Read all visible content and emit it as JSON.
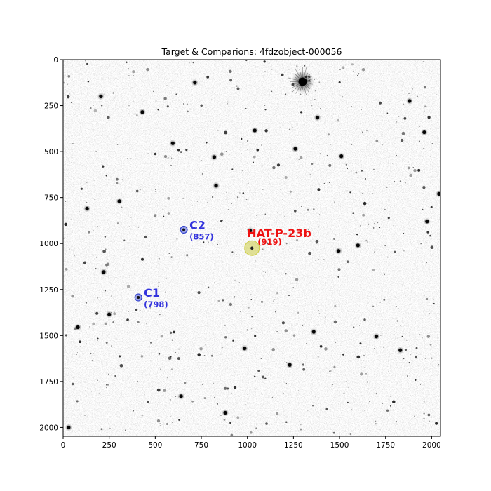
{
  "chart_data": {
    "type": "scatter",
    "title": "Target & Comparions: 4fdzobject-000056",
    "xlabel": "",
    "ylabel": "",
    "xlim": [
      0,
      2048
    ],
    "ylim": [
      2048,
      0
    ],
    "x_ticks": [
      0,
      250,
      500,
      750,
      1000,
      1250,
      1500,
      1750,
      2000
    ],
    "y_ticks": [
      0,
      250,
      500,
      750,
      1000,
      1250,
      1500,
      1750,
      2000
    ],
    "grid": false,
    "background": "greyscale star field image (inverted: stars dark on light background)",
    "image_features": {
      "bright_star": {
        "x": 1300,
        "y": 120
      },
      "stars": [
        [
          205,
          200
        ],
        [
          715,
          125
        ],
        [
          430,
          285
        ],
        [
          595,
          455
        ],
        [
          820,
          530
        ],
        [
          1260,
          485
        ],
        [
          1510,
          525
        ],
        [
          1960,
          395
        ],
        [
          1880,
          225
        ],
        [
          305,
          770
        ],
        [
          130,
          810
        ],
        [
          1975,
          880
        ],
        [
          2040,
          730
        ],
        [
          1380,
          315
        ],
        [
          1040,
          385
        ],
        [
          220,
          1155
        ],
        [
          250,
          1385
        ],
        [
          80,
          1455
        ],
        [
          1700,
          1505
        ],
        [
          985,
          1570
        ],
        [
          1230,
          1660
        ],
        [
          880,
          1920
        ],
        [
          30,
          2000
        ],
        [
          1495,
          1040
        ],
        [
          1015,
          930
        ],
        [
          830,
          685
        ],
        [
          1600,
          1010
        ],
        [
          1830,
          1580
        ],
        [
          640,
          1830
        ],
        [
          1360,
          1480
        ]
      ]
    },
    "annotations": [
      {
        "name": "C2",
        "count": "(857)",
        "x": 655,
        "y": 925,
        "color": "#3333dd",
        "marker_color": "#2233cc",
        "role": "comparison"
      },
      {
        "name": "C1",
        "count": "(798)",
        "x": 408,
        "y": 1293,
        "color": "#3333dd",
        "marker_color": "#2233cc",
        "role": "comparison"
      },
      {
        "name": "HAT-P-23b",
        "count": "(919)",
        "x": 1025,
        "y": 1025,
        "color": "#ee1111",
        "marker_color": "#cccc44",
        "role": "target"
      }
    ]
  }
}
